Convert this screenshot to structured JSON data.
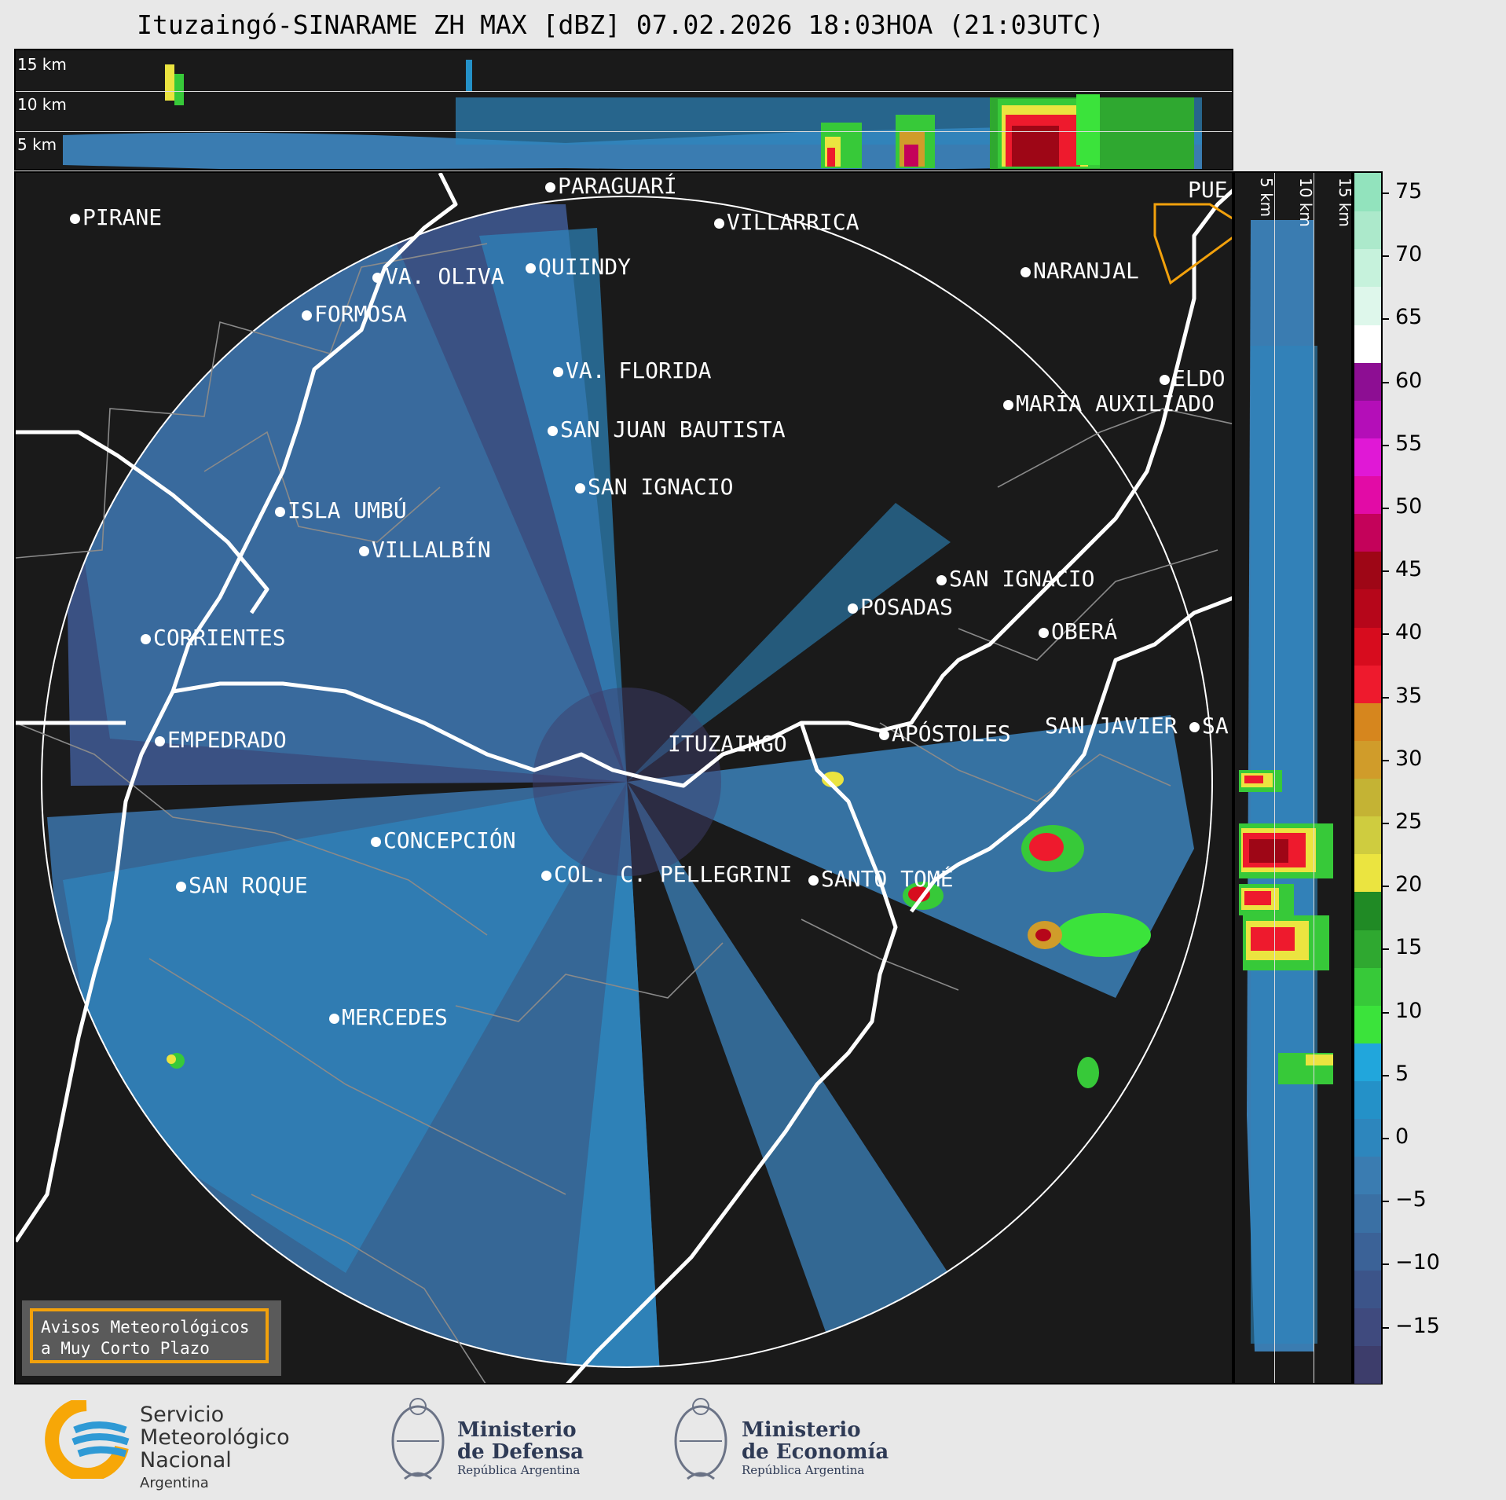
{
  "header": {
    "title": "Ituzaingó-SINARAME ZH MAX [dBZ] 07.02.2026 18:03HOA (21:03UTC)"
  },
  "top_cross_section": {
    "height_labels": [
      "15 km",
      "10 km",
      "5 km"
    ]
  },
  "side_cross_section": {
    "height_labels": [
      "5 km",
      "10 km",
      "15 km"
    ]
  },
  "map": {
    "radar_site": "ITUZAINGÓ",
    "cities": [
      {
        "name": "PIRANE"
      },
      {
        "name": "PARAGUARÍ"
      },
      {
        "name": "VILLARRICA"
      },
      {
        "name": "QUIINDY"
      },
      {
        "name": "VA. OLIVA"
      },
      {
        "name": "FORMOSA"
      },
      {
        "name": "NARANJAL"
      },
      {
        "name": "PUE"
      },
      {
        "name": "VA. FLORIDA"
      },
      {
        "name": "ELDO"
      },
      {
        "name": "MARÍA AUXILIADO"
      },
      {
        "name": "SAN JUAN BAUTISTA"
      },
      {
        "name": "SAN IGNACIO"
      },
      {
        "name": "ISLA UMBÚ"
      },
      {
        "name": "VILLALBÍN"
      },
      {
        "name": "SAN IGNACIO"
      },
      {
        "name": "POSADAS"
      },
      {
        "name": "CORRIENTES"
      },
      {
        "name": "OBERÁ"
      },
      {
        "name": "EMPEDRADO"
      },
      {
        "name": "APÓSTOLES"
      },
      {
        "name": "SAN JAVIER"
      },
      {
        "name": "SA"
      },
      {
        "name": "CONCEPCIÓN"
      },
      {
        "name": "COL. C. PELLEGRINI"
      },
      {
        "name": "SANTO TOMÉ"
      },
      {
        "name": "SAN ROQUE"
      },
      {
        "name": "MERCEDES"
      }
    ],
    "notice": {
      "line1": "Avisos Meteorológicos",
      "line2": "a Muy Corto Plazo"
    }
  },
  "colorbar": {
    "ticks": [
      "75",
      "70",
      "65",
      "60",
      "55",
      "50",
      "45",
      "40",
      "35",
      "30",
      "25",
      "20",
      "15",
      "10",
      "5",
      "0",
      "−5",
      "−10",
      "−15"
    ],
    "colors": [
      "#3d3d6b",
      "#3f4a7e",
      "#3c5489",
      "#3b6297",
      "#3a70a4",
      "#3a7cb1",
      "#2d86bd",
      "#2491c8",
      "#21a6dc",
      "#3be33b",
      "#37c939",
      "#2fa830",
      "#208a25",
      "#ebe440",
      "#cfcc3f",
      "#c4b334",
      "#d09c2a",
      "#d6861e",
      "#ee1a2d",
      "#d70c1e",
      "#b6061a",
      "#9e0616",
      "#c4025a",
      "#e20ba6",
      "#e018d6",
      "#b40eb8",
      "#8d0e93",
      "#ffffff",
      "#def7eb",
      "#c6f2dc",
      "#ace9cb",
      "#92e3bd"
    ]
  },
  "footer": {
    "smn_line1": "Servicio",
    "smn_line2": "Meteorológico",
    "smn_line3": "Nacional",
    "smn_line4": "Argentina",
    "defensa_line1": "Ministerio",
    "defensa_line2": "de Defensa",
    "defensa_sub": "República Argentina",
    "economia_line1": "Ministerio",
    "economia_line2": "de Economía",
    "economia_sub": "República Argentina"
  }
}
